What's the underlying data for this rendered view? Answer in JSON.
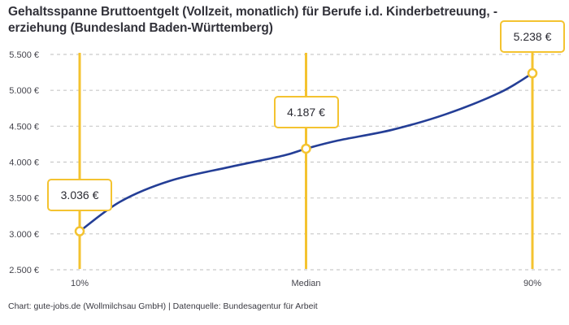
{
  "header": {
    "title_line1": "Gehaltsspanne Bruttoentgelt (Vollzeit, monatlich) für Berufe i.d. Kinderbetreuung, -",
    "title_line2": "erziehung (Bundesland Baden-Württemberg)"
  },
  "chart_data": {
    "type": "line",
    "title": "Gehaltsspanne Bruttoentgelt (Vollzeit, monatlich) für Berufe i.d. Kinderbetreuung, -erziehung (Bundesland Baden-Württemberg)",
    "categories": [
      "10%",
      "Median",
      "90%"
    ],
    "values": [
      3036,
      4187,
      5238
    ],
    "point_labels": [
      "3.036 €",
      "4.187 €",
      "5.238 €"
    ],
    "y_ticks": [
      {
        "value": 2500,
        "label": "2.500 €"
      },
      {
        "value": 3000,
        "label": "3.000 €"
      },
      {
        "value": 3500,
        "label": "3.500 €"
      },
      {
        "value": 4000,
        "label": "4.000 €"
      },
      {
        "value": 4500,
        "label": "4.500 €"
      },
      {
        "value": 5000,
        "label": "5.000 €"
      },
      {
        "value": 5500,
        "label": "5.500 €"
      }
    ],
    "ylim": [
      2500,
      5500
    ],
    "grid": "horizontal-dashed",
    "legend": "none",
    "curve_samples": [
      [
        0.0,
        3036
      ],
      [
        0.09,
        3450
      ],
      [
        0.2,
        3740
      ],
      [
        0.33,
        3930
      ],
      [
        0.45,
        4090
      ],
      [
        0.5,
        4187
      ],
      [
        0.57,
        4300
      ],
      [
        0.69,
        4450
      ],
      [
        0.81,
        4670
      ],
      [
        0.93,
        4975
      ],
      [
        1.0,
        5238
      ]
    ],
    "colors": {
      "accent_yellow": "#f4c330",
      "line_blue": "#243e96",
      "grid_gray": "#c9c9c9",
      "marker_fill": "#ffffff",
      "text_dark": "#32323a"
    }
  },
  "footer": {
    "credit": "Chart: gute-jobs.de (Wollmilchsau GmbH) | Datenquelle: Bundesagentur für Arbeit"
  }
}
